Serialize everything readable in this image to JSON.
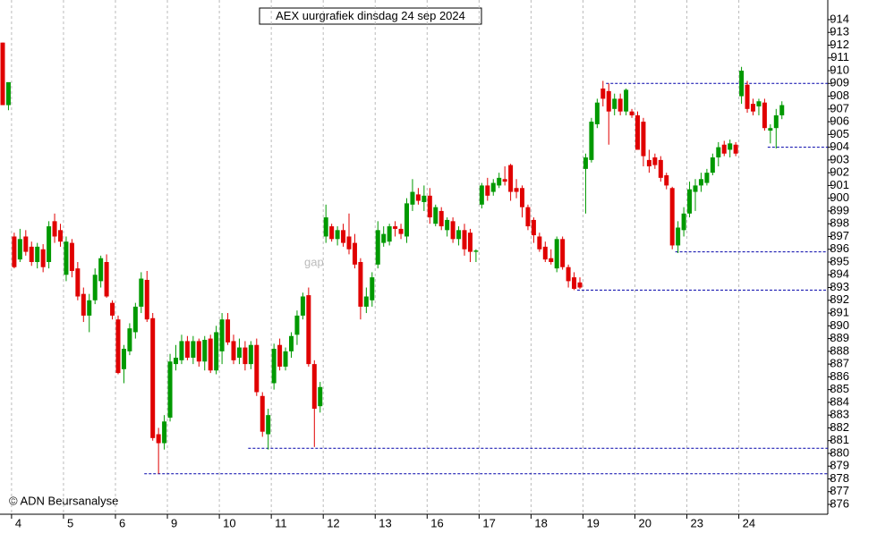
{
  "chart_data": {
    "type": "candlestick",
    "title": "AEX uurgrafiek dinsdag 24 sep 2024",
    "copyright": "© ADN Beursanalyse",
    "annotations": [
      "gap",
      "gap"
    ],
    "up_color": "#009900",
    "down_color": "#e00000",
    "level_color": "#0000aa",
    "grid": true,
    "ylim": [
      875.23,
      915.54
    ],
    "yticks": [
      876,
      877,
      878,
      879,
      880,
      881,
      882,
      883,
      884,
      885,
      886,
      887,
      888,
      889,
      890,
      891,
      892,
      893,
      894,
      895,
      896,
      897,
      898,
      899,
      900,
      901,
      902,
      903,
      904,
      905,
      906,
      907,
      908,
      909,
      910,
      911,
      912,
      913,
      914
    ],
    "levels": [
      {
        "value": 909,
        "start": 105
      },
      {
        "value": 904,
        "start": 133
      },
      {
        "value": 895.8,
        "start": 117
      },
      {
        "value": 892.8,
        "start": 100
      },
      {
        "value": 880.4,
        "start": 43
      },
      {
        "value": 878.4,
        "start": 25
      }
    ],
    "categories": [
      null,
      null,
      "4",
      null,
      null,
      null,
      null,
      null,
      null,
      null,
      null,
      "5",
      null,
      null,
      null,
      null,
      null,
      null,
      null,
      null,
      "6",
      null,
      null,
      null,
      null,
      null,
      null,
      null,
      null,
      "9",
      null,
      null,
      null,
      null,
      null,
      null,
      null,
      null,
      "10",
      null,
      null,
      null,
      null,
      null,
      null,
      null,
      null,
      "11",
      null,
      null,
      null,
      null,
      null,
      null,
      null,
      null,
      "12",
      null,
      null,
      null,
      null,
      null,
      null,
      null,
      null,
      "13",
      null,
      null,
      null,
      null,
      null,
      null,
      null,
      null,
      "16",
      null,
      null,
      null,
      null,
      null,
      null,
      null,
      null,
      "17",
      null,
      null,
      null,
      null,
      null,
      null,
      null,
      null,
      "18",
      null,
      null,
      null,
      null,
      null,
      null,
      null,
      null,
      "19",
      null,
      null,
      null,
      null,
      null,
      null,
      null,
      null,
      "20",
      null,
      null,
      null,
      null,
      null,
      null,
      null,
      null,
      "23",
      null,
      null,
      null,
      null,
      null,
      null,
      null,
      null,
      "24",
      null,
      null,
      null,
      null,
      null,
      null,
      null
    ],
    "open": [
      912.2,
      907.3,
      897,
      895.2,
      897,
      896.2,
      895,
      896,
      895,
      898.2,
      897.5,
      894,
      896.5,
      894.5,
      892.5,
      890.8,
      892,
      893.5,
      895,
      891.8,
      890.5,
      886.6,
      888,
      889.5,
      891.5,
      893.6,
      890.6,
      881.5,
      880.8,
      882.8,
      887,
      887.3,
      888.8,
      887.5,
      888.8,
      887.2,
      889,
      886.5,
      888,
      890.5,
      888.8,
      887.5,
      888.3,
      887,
      888.5,
      884.5,
      881.5,
      885.5,
      888.5,
      886.8,
      888,
      889.3,
      890.8,
      892.4,
      887,
      883.7,
      897,
      897.8,
      896.8,
      897.5,
      897,
      896.5,
      895,
      891.5,
      892,
      894.8,
      896.5,
      896.6,
      897.8,
      897.6,
      897,
      899.5,
      900.3,
      899.7,
      900.2,
      898,
      899,
      897.5,
      898.2,
      896.8,
      897.5,
      897.3,
      895.8,
      899.5,
      901,
      900.5,
      901,
      901.5,
      902.6,
      900.8,
      900.8,
      899.3,
      898.3,
      897,
      896.2,
      895.3,
      894.5,
      896.8,
      894.6,
      893.8,
      893.4,
      902.3,
      903,
      905.8,
      908.6,
      908.4,
      907,
      907.8,
      906.8,
      906.8,
      906.5,
      906,
      903,
      903.2,
      903,
      901.8,
      900.8,
      896.3,
      897.5,
      898.8,
      900.5,
      901,
      901.2,
      902,
      903.2,
      904.2,
      903.8,
      904.2,
      908,
      908.9,
      907.4,
      907.2,
      907.5,
      905.3,
      905.5,
      906.5
    ],
    "high": [
      912.2,
      909,
      897.3,
      897.6,
      897.5,
      896.6,
      896.5,
      896.4,
      898.2,
      898.8,
      898,
      897,
      896.8,
      895,
      893,
      892.5,
      894.5,
      895.5,
      895.6,
      892,
      890.8,
      888.5,
      890.2,
      891.8,
      894.2,
      894.3,
      891,
      882,
      883,
      887.8,
      888.5,
      889.3,
      889.2,
      889.2,
      889,
      889.2,
      889.3,
      890,
      891,
      891,
      889.3,
      889,
      888.8,
      888.8,
      889,
      884.8,
      883.5,
      888.6,
      889,
      888.3,
      889.5,
      891.2,
      892.6,
      893,
      887.3,
      885.6,
      899.5,
      898,
      897.8,
      898,
      898.8,
      897.2,
      895.3,
      893,
      894.2,
      898.2,
      897.8,
      898,
      898.2,
      898,
      900,
      901.5,
      900.8,
      901,
      900.8,
      899.5,
      899.3,
      898.5,
      898.5,
      897.8,
      898,
      897.6,
      896,
      901.2,
      901.6,
      901.5,
      902,
      902.5,
      902.7,
      901.5,
      901,
      899.5,
      898.5,
      897.3,
      896.6,
      896,
      897,
      897,
      894.8,
      894.2,
      893.8,
      903.5,
      906.3,
      907.8,
      909.2,
      909,
      908.2,
      908.2,
      908.6,
      907,
      906.8,
      906.3,
      903.8,
      903.5,
      903.3,
      902,
      900.9,
      898.2,
      899.3,
      901.3,
      901.5,
      902,
      902.3,
      903.5,
      904.4,
      904.5,
      904.6,
      904.4,
      910.3,
      909.2,
      907.8,
      907.8,
      907.8,
      905.8,
      907,
      907.6
    ],
    "low": [
      907.3,
      906.9,
      894.5,
      895,
      895.5,
      894.7,
      894.5,
      894.2,
      894.5,
      896.5,
      896.2,
      893.5,
      893.8,
      892,
      890.3,
      889.5,
      891.7,
      893,
      892.2,
      890.5,
      886.2,
      885.5,
      887.7,
      889,
      891,
      890.3,
      881,
      878.4,
      880.3,
      882.5,
      886.5,
      887,
      887.3,
      887,
      886.8,
      886.5,
      886.3,
      886.2,
      887,
      888.5,
      887,
      887,
      886.5,
      886.6,
      884.5,
      881.3,
      880.3,
      885,
      886.5,
      886.5,
      887.5,
      888.5,
      890.5,
      886.8,
      880.5,
      883.2,
      896.5,
      896.6,
      896.3,
      896.2,
      895.6,
      894.5,
      890.5,
      891,
      891.5,
      894.5,
      896.2,
      896.3,
      897,
      896.8,
      896.5,
      899,
      899.5,
      899,
      898,
      897.8,
      897.5,
      897,
      896.5,
      896.3,
      895.5,
      895,
      895,
      899.2,
      899.8,
      900.2,
      900.8,
      901,
      899.8,
      900,
      898.5,
      897.5,
      896.5,
      895.8,
      895,
      894.8,
      894.2,
      894.4,
      893,
      892.8,
      892.9,
      898.8,
      902.8,
      905.5,
      907.2,
      904.2,
      906.5,
      906.5,
      906.5,
      906.3,
      903.8,
      902.5,
      902,
      902.3,
      901.3,
      900.7,
      896,
      895.7,
      897,
      898.5,
      899,
      900.5,
      901,
      901.8,
      902.5,
      903.3,
      903.2,
      903.3,
      907.4,
      906.7,
      906.5,
      906.5,
      905.3,
      904.3,
      903.9,
      906.2
    ],
    "close": [
      907.3,
      909.1,
      894.6,
      896.8,
      895.8,
      895,
      896.2,
      894.6,
      897.8,
      897,
      896.6,
      896.6,
      894.3,
      892.3,
      890.8,
      892,
      894,
      895.3,
      892.3,
      890.8,
      886.3,
      888.2,
      889.8,
      891.5,
      893.7,
      890.5,
      881.2,
      880.8,
      882.5,
      887.2,
      887.5,
      888.8,
      887.5,
      888.8,
      887.2,
      888.9,
      886.5,
      889.5,
      890.5,
      888.7,
      887.3,
      888.3,
      887,
      888.5,
      884.8,
      881.7,
      883,
      888.2,
      886.8,
      888,
      889.2,
      890.8,
      892.3,
      887,
      883.5,
      885.2,
      898.5,
      896.8,
      897.5,
      896.5,
      896,
      894.8,
      891.5,
      892.3,
      893.8,
      897.5,
      897.2,
      897.8,
      897.6,
      897.2,
      899.6,
      900.5,
      899.8,
      900.2,
      898.5,
      899.3,
      897.8,
      898.3,
      896.8,
      897.5,
      896,
      895.8,
      895.9,
      901,
      900.2,
      901.2,
      901.6,
      901.3,
      900.5,
      900.5,
      899.3,
      897.8,
      897.1,
      896,
      895.2,
      895,
      896.8,
      894.6,
      893.5,
      892.9,
      893,
      903.2,
      906,
      907.5,
      907.8,
      906.8,
      907.8,
      906.8,
      908.5,
      906.5,
      903.8,
      903.3,
      902.5,
      902.6,
      901.6,
      901,
      896.3,
      897.7,
      898.8,
      900.7,
      901,
      901.5,
      902,
      903.2,
      904,
      903.5,
      904.3,
      903.5,
      910,
      907,
      906.8,
      907.6,
      905.5,
      905.5,
      906.5,
      907.3
    ]
  }
}
